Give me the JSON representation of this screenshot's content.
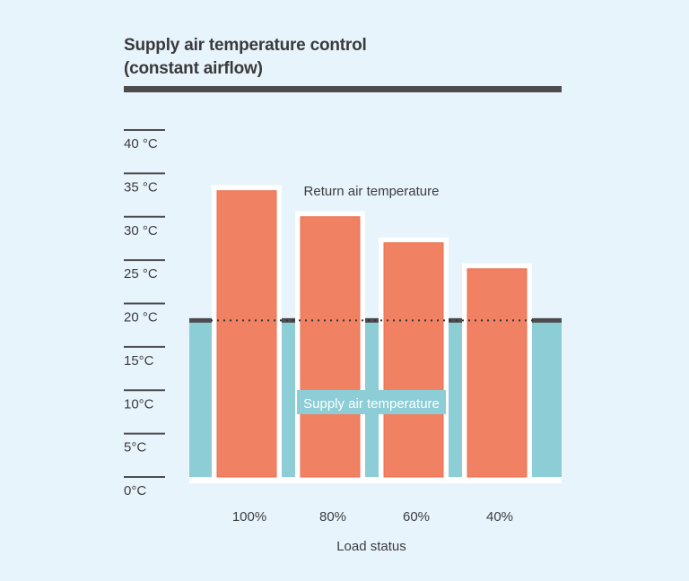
{
  "chart_data": {
    "type": "bar",
    "title": "Supply air temperature control",
    "subtitle": "(constant airflow)",
    "xlabel": "Load status",
    "ylabel": "",
    "categories": [
      "100%",
      "80%",
      "60%",
      "40%"
    ],
    "series": [
      {
        "name": "Return air temperature",
        "values": [
          33,
          30,
          27,
          24
        ],
        "color": "#f08163"
      },
      {
        "name": "Supply air temperature",
        "values": [
          18,
          18,
          18,
          18
        ],
        "color": "#8ccdd6"
      }
    ],
    "ylim": [
      0,
      40
    ],
    "yticks": [
      0,
      5,
      10,
      15,
      20,
      25,
      30,
      35,
      40
    ],
    "ytick_labels": [
      "0°C",
      "5°C",
      "10°C",
      "15°C",
      "20 °C",
      "25 °C",
      "30 °C",
      "35 °C",
      "40 °C"
    ],
    "annotations": [
      {
        "text": "Return air temperature",
        "target": "Return air temperature"
      },
      {
        "text": "Supply air temperature",
        "target": "Supply air temperature"
      }
    ],
    "grid": false,
    "legend": "none",
    "colors": {
      "background": "#e8f4fc",
      "return_bar": "#f08163",
      "supply_band": "#8ccdd6",
      "supply_line": "#4c4c4e",
      "tick": "#4c4c4e",
      "text": "#3c3c3e"
    }
  }
}
